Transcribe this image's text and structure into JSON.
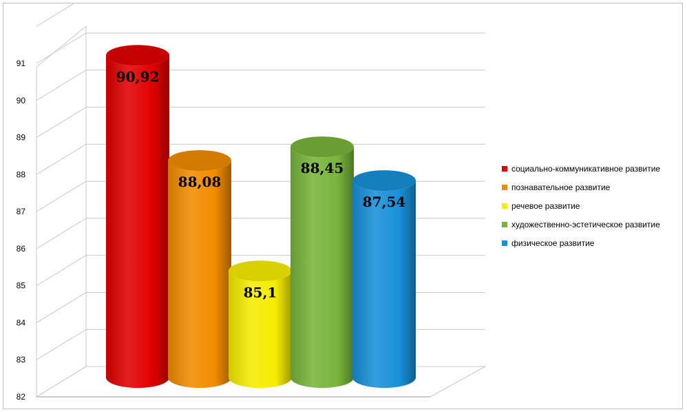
{
  "chart_data": {
    "type": "bar",
    "style": "3d-cylinder",
    "categories": [
      "социально-коммуникативное развитие",
      "познавательное развитие",
      "речевое развитие",
      "художественно-эстетическое развитие",
      "физическое развитие"
    ],
    "series": [
      {
        "name": "социально-коммуникативное развитие",
        "value": 90.92,
        "label": "90,92",
        "color": "#e00000"
      },
      {
        "name": "познавательное развитие",
        "value": 88.08,
        "label": "88,08",
        "color": "#f08c00"
      },
      {
        "name": "речевое развитие",
        "value": 85.1,
        "label": "85,1",
        "color": "#f5ec00"
      },
      {
        "name": "художественно-эстетическое развитие",
        "value": 88.45,
        "label": "88,45",
        "color": "#78b43c"
      },
      {
        "name": "физическое развитие",
        "value": 87.54,
        "label": "87,54",
        "color": "#1890d8"
      }
    ],
    "yticks": [
      "82",
      "83",
      "84",
      "85",
      "86",
      "87",
      "88",
      "89",
      "90",
      "91"
    ],
    "ylim": [
      82,
      91
    ],
    "grid": true,
    "legend": "right"
  }
}
